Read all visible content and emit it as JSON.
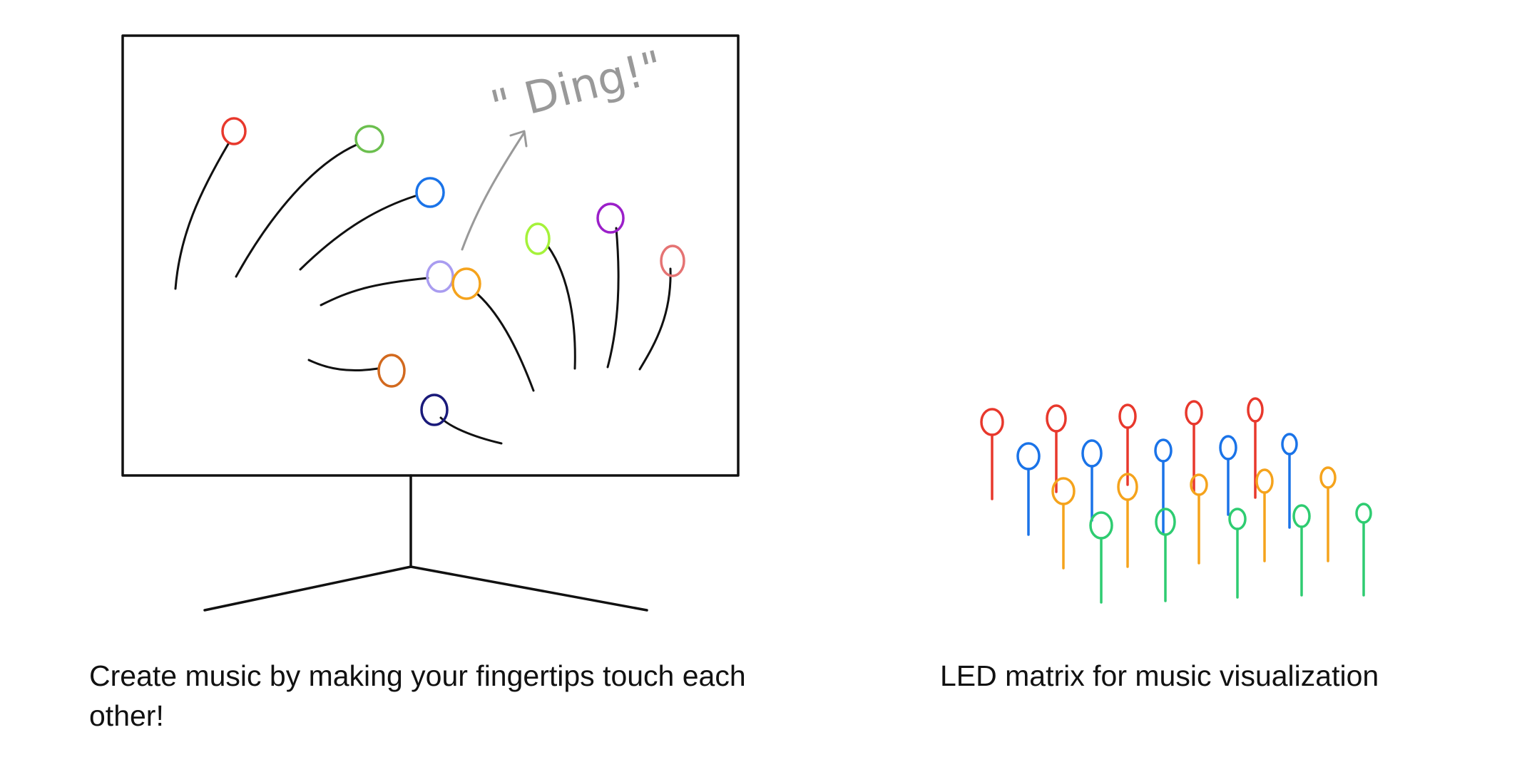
{
  "annotation": {
    "sound_text": "\" Ding!\""
  },
  "captions": {
    "left": "Create music by making your fingertips touch each other!",
    "right": "LED matrix for music visualization"
  },
  "colors": {
    "frame": "#111111",
    "stroke": "#111111",
    "annotation": "#999999",
    "tip_red": "#e8382c",
    "tip_green": "#6bbf4e",
    "tip_blue": "#1a73e8",
    "tip_lavender": "#a99cf0",
    "tip_orange": "#f5a31c",
    "tip_lime": "#a5f23a",
    "tip_purple": "#9b1fc9",
    "tip_pink": "#e57373",
    "tip_brown": "#d2691e",
    "tip_navy": "#1a1a7a",
    "led_red": "#e8382c",
    "led_blue": "#1a73e8",
    "led_orange": "#f5a31c",
    "led_green": "#2ecc71"
  }
}
